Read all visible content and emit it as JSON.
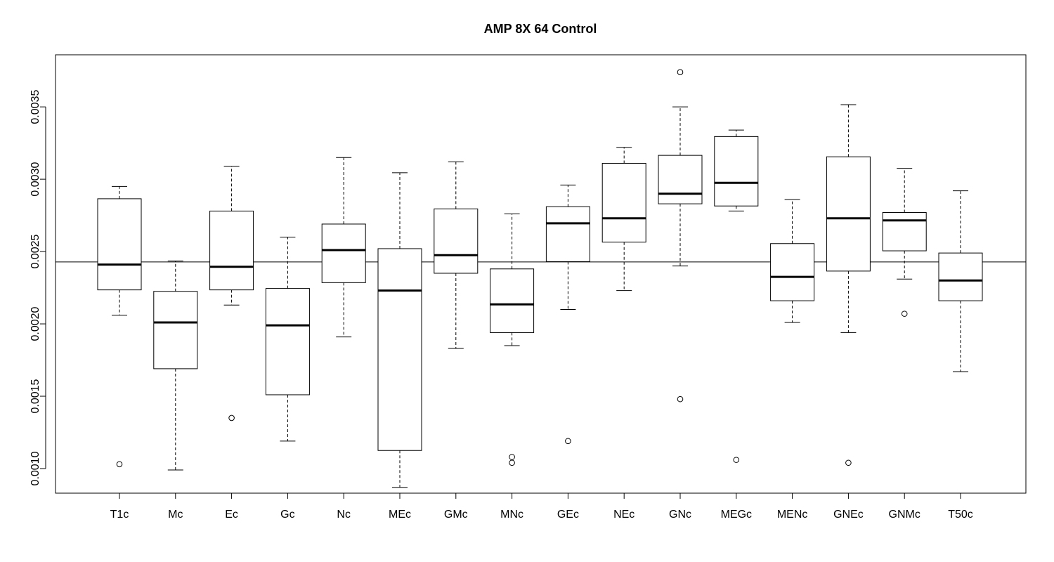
{
  "chart_data": {
    "type": "boxplot",
    "title": "AMP 8X 64 Control",
    "xlabel": "",
    "ylabel": "",
    "ylim": [
      0.00083,
      0.00386
    ],
    "yticks": [
      0.001,
      0.0015,
      0.002,
      0.0025,
      0.003,
      0.0035
    ],
    "ytick_labels": [
      "0.0010",
      "0.0015",
      "0.0020",
      "0.0025",
      "0.0030",
      "0.0035"
    ],
    "reference_line": 0.002428,
    "grid": false,
    "categories": [
      "T1c",
      "Mc",
      "Ec",
      "Gc",
      "Nc",
      "MEc",
      "GMc",
      "MNc",
      "GEc",
      "NEc",
      "GNc",
      "MEGc",
      "MENc",
      "GNEc",
      "GNMc",
      "T50c"
    ],
    "boxes": [
      {
        "min": 0.00206,
        "q1": 0.002235,
        "median": 0.00241,
        "q3": 0.002865,
        "max": 0.00295,
        "outliers": [
          0.00103
        ]
      },
      {
        "min": 0.00099,
        "q1": 0.00169,
        "median": 0.00201,
        "q3": 0.002225,
        "max": 0.002435,
        "outliers": []
      },
      {
        "min": 0.00213,
        "q1": 0.002235,
        "median": 0.002395,
        "q3": 0.00278,
        "max": 0.00309,
        "outliers": [
          0.00135
        ]
      },
      {
        "min": 0.00119,
        "q1": 0.00151,
        "median": 0.00199,
        "q3": 0.002245,
        "max": 0.0026,
        "outliers": []
      },
      {
        "min": 0.00191,
        "q1": 0.002285,
        "median": 0.00251,
        "q3": 0.00269,
        "max": 0.00315,
        "outliers": []
      },
      {
        "min": 0.00087,
        "q1": 0.001125,
        "median": 0.00223,
        "q3": 0.00252,
        "max": 0.003045,
        "outliers": []
      },
      {
        "min": 0.00183,
        "q1": 0.00235,
        "median": 0.002475,
        "q3": 0.002795,
        "max": 0.00312,
        "outliers": []
      },
      {
        "min": 0.00185,
        "q1": 0.00194,
        "median": 0.002135,
        "q3": 0.00238,
        "max": 0.00276,
        "outliers": [
          0.00108,
          0.00104
        ]
      },
      {
        "min": 0.0021,
        "q1": 0.00243,
        "median": 0.002695,
        "q3": 0.00281,
        "max": 0.00296,
        "outliers": [
          0.00119
        ]
      },
      {
        "min": 0.00223,
        "q1": 0.002565,
        "median": 0.00273,
        "q3": 0.00311,
        "max": 0.00322,
        "outliers": []
      },
      {
        "min": 0.0024,
        "q1": 0.00283,
        "median": 0.0029,
        "q3": 0.003165,
        "max": 0.0035,
        "outliers": [
          0.00374,
          0.00148
        ]
      },
      {
        "min": 0.00278,
        "q1": 0.002815,
        "median": 0.002975,
        "q3": 0.003295,
        "max": 0.00334,
        "outliers": [
          0.00106
        ]
      },
      {
        "min": 0.00201,
        "q1": 0.00216,
        "median": 0.002325,
        "q3": 0.002555,
        "max": 0.00286,
        "outliers": []
      },
      {
        "min": 0.00194,
        "q1": 0.002365,
        "median": 0.00273,
        "q3": 0.003155,
        "max": 0.003515,
        "outliers": [
          0.00104
        ]
      },
      {
        "min": 0.00231,
        "q1": 0.002505,
        "median": 0.002715,
        "q3": 0.00277,
        "max": 0.003075,
        "outliers": [
          0.00207
        ]
      },
      {
        "min": 0.00167,
        "q1": 0.00216,
        "median": 0.0023,
        "q3": 0.00249,
        "max": 0.00292,
        "outliers": []
      }
    ]
  }
}
